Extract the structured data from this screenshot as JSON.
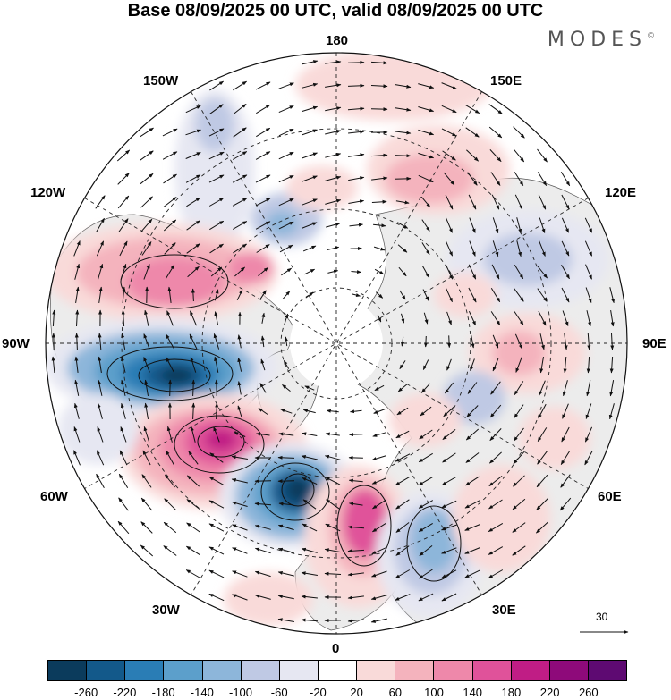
{
  "title": "Base 08/09/2025 00 UTC, valid 08/09/2025 00 UTC",
  "brand": "MODES",
  "brand_mark": "©",
  "map": {
    "projection": "north-polar-stereographic",
    "longitude_labels": {
      "top": "180",
      "bottom": "0",
      "left": "90W",
      "right": "90E",
      "upper_left_1": "150W",
      "upper_left_2": "120W",
      "upper_right_1": "150E",
      "upper_right_2": "120E",
      "lower_left_1": "60W",
      "lower_left_2": "30W",
      "lower_right_1": "60E",
      "lower_right_2": "30E"
    },
    "reference_vector": "30"
  },
  "colorbar": {
    "colors": [
      "#0b3b5c",
      "#13598a",
      "#2a7db5",
      "#5c9fcb",
      "#8db6da",
      "#bfc9e4",
      "#e6e7f2",
      "#ffffff",
      "#f9dad9",
      "#f4b3bd",
      "#ee88aa",
      "#e0529a",
      "#c01d85",
      "#8e0a7a",
      "#5e0a72"
    ],
    "tick_labels": [
      "-260",
      "-220",
      "-180",
      "-140",
      "-100",
      "-60",
      "-20",
      "20",
      "60",
      "100",
      "140",
      "180",
      "220",
      "260"
    ]
  },
  "anomaly_centers": [
    {
      "sign": "negative",
      "intensity": 260
    },
    {
      "sign": "negative",
      "intensity": 220
    },
    {
      "sign": "negative",
      "intensity": 140
    },
    {
      "sign": "negative",
      "intensity": 100
    },
    {
      "sign": "positive",
      "intensity": 220
    },
    {
      "sign": "positive",
      "intensity": 180
    },
    {
      "sign": "positive",
      "intensity": 140
    },
    {
      "sign": "positive",
      "intensity": 100
    },
    {
      "sign": "positive",
      "intensity": 60
    }
  ]
}
